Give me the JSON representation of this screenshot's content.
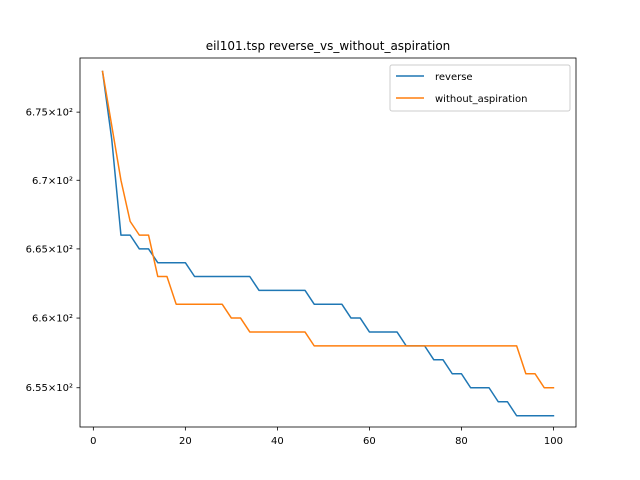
{
  "chart_data": {
    "type": "line",
    "title": "eil101.tsp  reverse_vs_without_aspiration",
    "xlabel": "",
    "ylabel": "",
    "xlim": [
      -2.9,
      104.9
    ],
    "ylim": [
      652.2,
      679.0
    ],
    "y_scale": "log",
    "x_ticks": [
      0,
      20,
      40,
      60,
      80,
      100
    ],
    "x_tick_labels": [
      "0",
      "20",
      "40",
      "60",
      "80",
      "100"
    ],
    "y_ticks": [
      655,
      660,
      665,
      670,
      675
    ],
    "y_tick_labels": [
      "6.55×10²",
      "6.6×10²",
      "6.65×10²",
      "6.7×10²",
      "6.75×10²"
    ],
    "legend_position": "upper right",
    "grid": false,
    "series": [
      {
        "name": "reverse",
        "color": "#1f77b4",
        "x": [
          2,
          4,
          6,
          8,
          10,
          12,
          14,
          16,
          18,
          20,
          22,
          24,
          26,
          28,
          30,
          32,
          34,
          36,
          38,
          40,
          42,
          44,
          46,
          48,
          50,
          52,
          54,
          56,
          58,
          60,
          62,
          64,
          66,
          68,
          70,
          72,
          74,
          76,
          78,
          80,
          82,
          84,
          86,
          88,
          90,
          92,
          94,
          96,
          98,
          100
        ],
        "y": [
          678,
          673,
          666,
          666,
          665,
          665,
          664,
          664,
          664,
          664,
          663,
          663,
          663,
          663,
          663,
          663,
          663,
          662,
          662,
          662,
          662,
          662,
          662,
          661,
          661,
          661,
          661,
          660,
          660,
          659,
          659,
          659,
          659,
          658,
          658,
          658,
          657,
          657,
          656,
          656,
          655,
          655,
          655,
          654,
          654,
          653,
          653,
          653,
          653,
          653
        ]
      },
      {
        "name": "without_aspiration",
        "color": "#ff7f0e",
        "x": [
          2,
          4,
          6,
          8,
          10,
          12,
          14,
          16,
          18,
          20,
          22,
          24,
          26,
          28,
          30,
          32,
          34,
          36,
          38,
          40,
          42,
          44,
          46,
          48,
          50,
          52,
          54,
          56,
          58,
          60,
          62,
          64,
          66,
          68,
          70,
          72,
          74,
          76,
          78,
          80,
          82,
          84,
          86,
          88,
          90,
          92,
          94,
          96,
          98,
          100
        ],
        "y": [
          678,
          674,
          670,
          667,
          666,
          666,
          663,
          663,
          661,
          661,
          661,
          661,
          661,
          661,
          660,
          660,
          659,
          659,
          659,
          659,
          659,
          659,
          659,
          658,
          658,
          658,
          658,
          658,
          658,
          658,
          658,
          658,
          658,
          658,
          658,
          658,
          658,
          658,
          658,
          658,
          658,
          658,
          658,
          658,
          658,
          658,
          656,
          656,
          655,
          655
        ]
      }
    ]
  }
}
